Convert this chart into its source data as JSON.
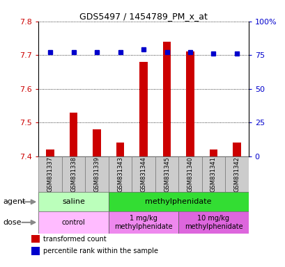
{
  "title": "GDS5497 / 1454789_PM_x_at",
  "samples": [
    "GSM831337",
    "GSM831338",
    "GSM831339",
    "GSM831343",
    "GSM831344",
    "GSM831345",
    "GSM831340",
    "GSM831341",
    "GSM831342"
  ],
  "bar_values": [
    7.42,
    7.53,
    7.48,
    7.44,
    7.68,
    7.74,
    7.71,
    7.42,
    7.44
  ],
  "percentile_values": [
    77,
    77,
    77,
    77,
    79,
    77,
    77,
    76,
    76
  ],
  "ylim_left": [
    7.4,
    7.8
  ],
  "ylim_right": [
    0,
    100
  ],
  "yticks_left": [
    7.4,
    7.5,
    7.6,
    7.7,
    7.8
  ],
  "yticks_right": [
    0,
    25,
    50,
    75,
    100
  ],
  "bar_color": "#cc0000",
  "dot_color": "#0000cc",
  "agent_groups": [
    {
      "label": "saline",
      "start": 0,
      "end": 3,
      "color": "#bbffbb"
    },
    {
      "label": "methylphenidate",
      "start": 3,
      "end": 9,
      "color": "#33dd33"
    }
  ],
  "dose_groups": [
    {
      "label": "control",
      "start": 0,
      "end": 3,
      "color": "#ffbbff"
    },
    {
      "label": "1 mg/kg\nmethylphenidate",
      "start": 3,
      "end": 6,
      "color": "#ee88ee"
    },
    {
      "label": "10 mg/kg\nmethylphenidate",
      "start": 6,
      "end": 9,
      "color": "#dd66dd"
    }
  ],
  "legend_red_label": "transformed count",
  "legend_blue_label": "percentile rank within the sample",
  "grid_color": "#000000",
  "left_tick_color": "#cc0000",
  "right_tick_color": "#0000cc",
  "sample_box_color": "#cccccc",
  "agent_label": "agent",
  "dose_label": "dose",
  "bar_width": 0.35,
  "bar_color_dark": "#aa0000"
}
